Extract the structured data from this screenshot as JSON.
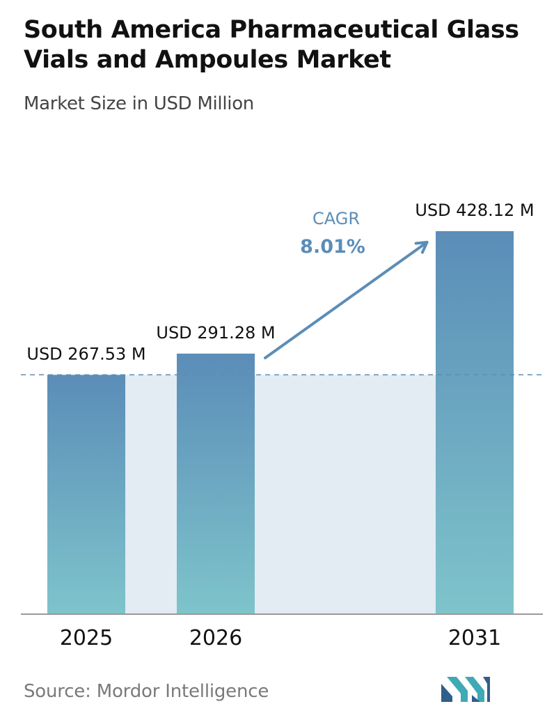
{
  "title": "South America Pharmaceutical Glass Vials and Ampoules Market",
  "subtitle": "Market Size in USD Million",
  "source": "Source: Mordor Intelligence",
  "colors": {
    "bar_top": "#5b8db8",
    "bar_bottom": "#7ec4cb",
    "area": "#e3ebf3",
    "arrow": "#5b8db8",
    "cagr_text": "#5b8db8",
    "axis": "#999999",
    "dashed": "#5b8db8"
  },
  "cagr": {
    "label": "CAGR",
    "value": "8.01%"
  },
  "chart_data": {
    "type": "bar",
    "title": "South America Pharmaceutical Glass Vials and Ampoules Market",
    "subtitle": "Market Size in USD Million",
    "categories": [
      "2025",
      "2026",
      "2031"
    ],
    "values": [
      267.53,
      291.28,
      428.12
    ],
    "value_labels": [
      "USD 267.53 M",
      "USD 291.28 M",
      "USD 428.12 M"
    ],
    "annotation": {
      "label": "CAGR",
      "value": "8.01%",
      "from": "2026",
      "to": "2031"
    },
    "reference_line": {
      "value": 267.53,
      "style": "dashed"
    },
    "ylim": [
      0,
      428.12
    ],
    "grid": false,
    "legend": "none"
  }
}
